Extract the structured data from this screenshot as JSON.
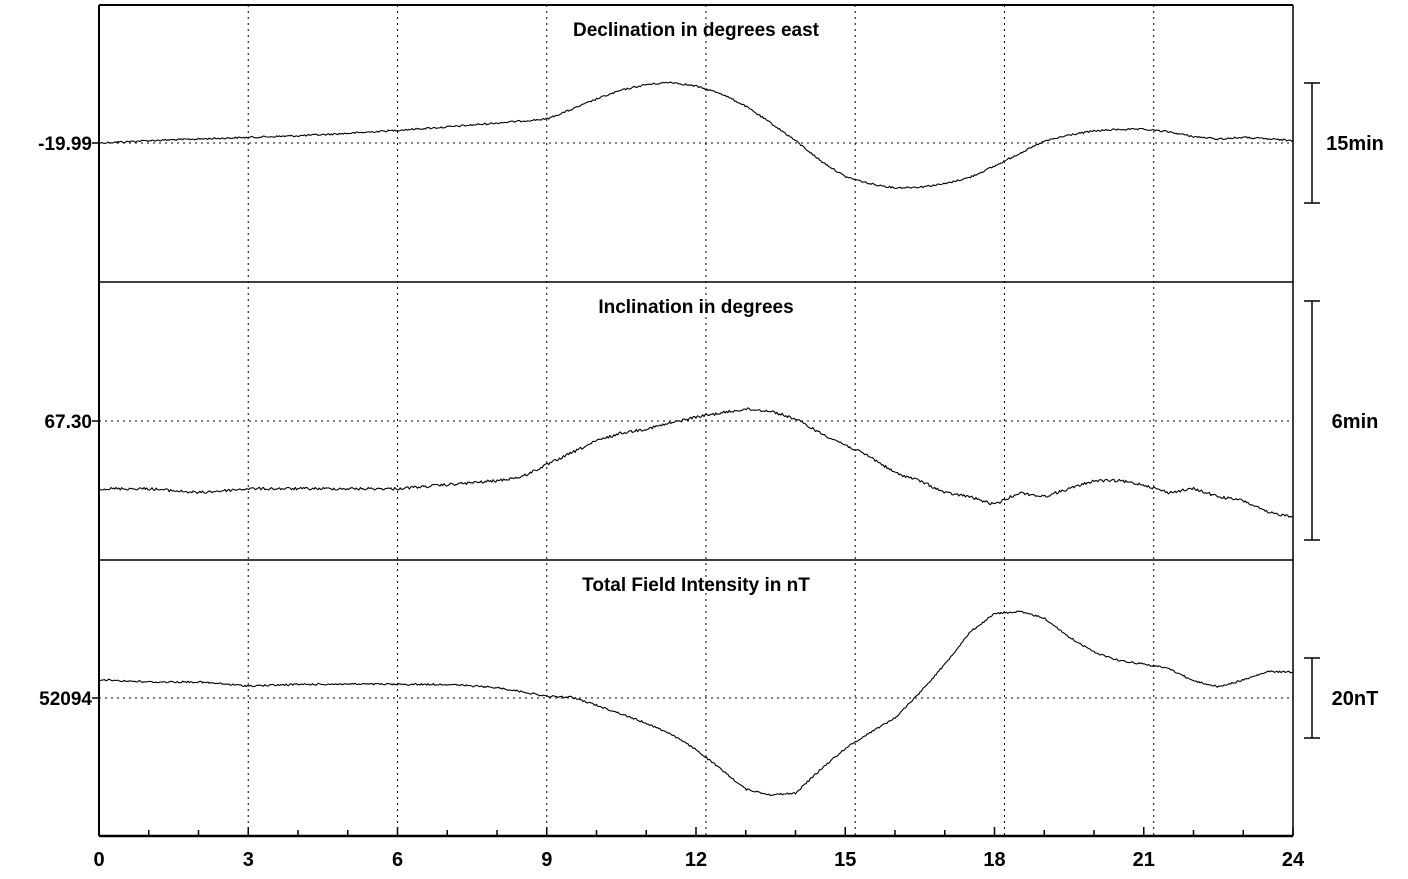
{
  "chart_data": [
    {
      "type": "line",
      "title": "Declination in degrees east",
      "baseline_label": "-19.99",
      "scale_label": "15min",
      "xlim": [
        0,
        24
      ],
      "x": [
        0,
        1,
        2,
        3,
        4,
        5,
        6,
        7,
        8,
        9,
        9.5,
        10,
        10.5,
        11,
        11.5,
        12,
        12.5,
        13,
        13.5,
        14,
        14.5,
        15,
        15.5,
        16,
        16.5,
        17,
        17.5,
        18,
        18.5,
        19,
        19.5,
        20,
        20.5,
        21,
        21.5,
        22,
        22.5,
        23,
        23.5,
        24
      ],
      "values": [
        0,
        0.3,
        0.5,
        0.7,
        0.9,
        1.2,
        1.6,
        2.0,
        2.5,
        3.0,
        4.2,
        5.5,
        6.6,
        7.3,
        7.6,
        7.1,
        6.2,
        4.6,
        2.5,
        0.3,
        -2.2,
        -4.2,
        -5.1,
        -5.6,
        -5.5,
        -5.1,
        -4.3,
        -2.9,
        -1.3,
        0.2,
        1.0,
        1.5,
        1.7,
        1.7,
        1.4,
        0.8,
        0.5,
        0.7,
        0.5,
        0.3
      ],
      "scale_bar": 15
    },
    {
      "type": "line",
      "title": "Inclination in degrees",
      "baseline_label": "67.30",
      "scale_label": "6min",
      "xlim": [
        0,
        24
      ],
      "x": [
        0,
        1,
        2,
        3,
        4,
        5,
        6,
        7,
        8,
        8.5,
        9,
        9.5,
        10,
        10.5,
        11,
        11.5,
        12,
        12.5,
        13,
        13.5,
        14,
        14.5,
        15,
        15.5,
        16,
        16.5,
        17,
        17.5,
        18,
        18.5,
        19,
        19.5,
        20,
        20.5,
        21,
        21.5,
        22,
        22.5,
        23,
        23.5,
        24
      ],
      "values": [
        -1.7,
        -1.7,
        -1.8,
        -1.7,
        -1.7,
        -1.7,
        -1.7,
        -1.6,
        -1.5,
        -1.4,
        -1.1,
        -0.8,
        -0.5,
        -0.3,
        -0.2,
        -0.05,
        0.1,
        0.2,
        0.3,
        0.25,
        0.05,
        -0.3,
        -0.6,
        -0.9,
        -1.3,
        -1.5,
        -1.8,
        -1.9,
        -2.1,
        -1.8,
        -1.9,
        -1.7,
        -1.5,
        -1.5,
        -1.6,
        -1.8,
        -1.7,
        -1.9,
        -2.0,
        -2.3,
        -2.4
      ],
      "scale_bar": 6
    },
    {
      "type": "line",
      "title": "Total Field Intensity in nT",
      "baseline_label": "52094",
      "scale_label": "20nT",
      "xlim": [
        0,
        24
      ],
      "x": [
        0,
        1,
        2,
        3,
        4,
        5,
        6,
        7,
        8,
        8.5,
        9,
        9.5,
        10,
        10.5,
        11,
        11.5,
        12,
        12.5,
        13,
        13.5,
        14,
        14.5,
        15,
        15.5,
        16,
        16.5,
        17,
        17.5,
        18,
        18.5,
        19,
        19.5,
        20,
        20.5,
        21,
        21.5,
        22,
        22.5,
        23,
        23.5,
        24
      ],
      "values": [
        4.6,
        4.0,
        4.0,
        3.0,
        3.4,
        3.5,
        3.4,
        3.4,
        2.6,
        1.6,
        0.4,
        0.2,
        -1.8,
        -4.0,
        -6.3,
        -9.0,
        -12.9,
        -17.8,
        -22.8,
        -24.2,
        -23.8,
        -17.9,
        -12.6,
        -8.6,
        -5.0,
        1.4,
        8.4,
        16.4,
        21.1,
        21.6,
        20.0,
        15.2,
        11.5,
        9.4,
        8.5,
        7.4,
        4.3,
        2.8,
        4.5,
        6.6,
        6.5
      ],
      "scale_bar": 20
    }
  ],
  "x_axis": {
    "ticks": [
      "0",
      "3",
      "6",
      "9",
      "12",
      "15",
      "18",
      "21",
      "24"
    ],
    "minor_step": 1,
    "vertical_grid_x": [
      3,
      6,
      9,
      12.2,
      15.2,
      18.2,
      21.2
    ]
  }
}
